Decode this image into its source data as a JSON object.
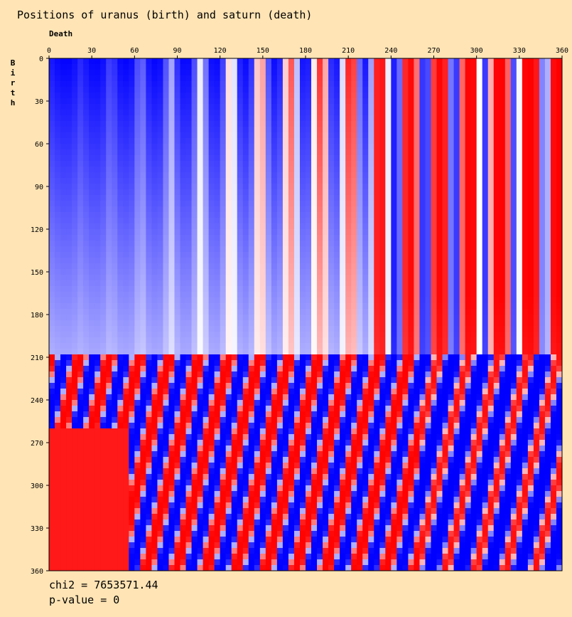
{
  "chart_data": {
    "type": "heatmap",
    "title": "Positions of uranus (birth) and saturn (death)",
    "xlabel": "Death",
    "ylabel": "Birth",
    "xlim": [
      0,
      360
    ],
    "ylim": [
      0,
      360
    ],
    "x_ticks": [
      "0",
      "30",
      "60",
      "90",
      "120",
      "150",
      "180",
      "210",
      "240",
      "270",
      "300",
      "330",
      "360"
    ],
    "y_ticks": [
      "0",
      "30",
      "60",
      "90",
      "120",
      "150",
      "180",
      "210",
      "240",
      "270",
      "300",
      "330",
      "360"
    ],
    "colors": {
      "high": "#FF0000",
      "low": "#0000FF",
      "neutral": "#FFFFFF"
    },
    "stats": {
      "chi2_text": "chi2 = 7653571.44",
      "pvalue_text": "p-value = 0"
    }
  }
}
